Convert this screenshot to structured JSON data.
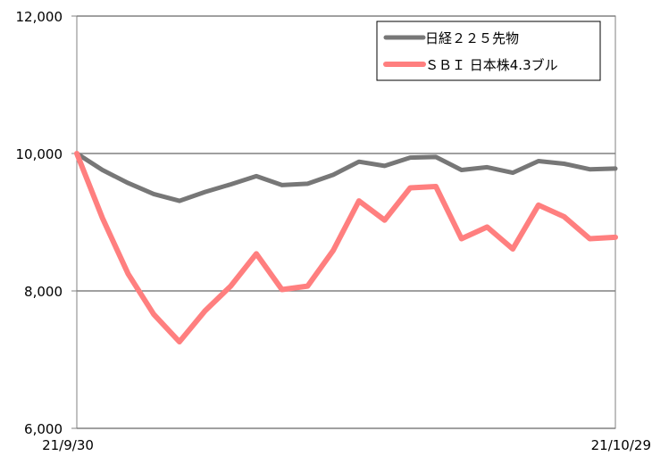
{
  "chart_data": {
    "type": "line",
    "title": "",
    "xlabel": "",
    "ylabel": "",
    "ylim": [
      6000,
      12000
    ],
    "yticks": [
      "6,000",
      "8,000",
      "10,000",
      "12,000"
    ],
    "ytick_values": [
      6000,
      8000,
      10000,
      12000
    ],
    "xtick_labels": [
      "21/9/30",
      "21/10/29"
    ],
    "grid": "horizontal",
    "legend_position": "top-right",
    "series": [
      {
        "name": "日経２２５先物",
        "color": "#777777",
        "values": [
          10000,
          9760,
          9570,
          9410,
          9310,
          9440,
          9550,
          9670,
          9540,
          9560,
          9690,
          9880,
          9820,
          9940,
          9950,
          9760,
          9800,
          9720,
          9890,
          9850,
          9770,
          9780
        ]
      },
      {
        "name": "ＳＢＩ 日本株4.3ブル",
        "color": "#ff7f7f",
        "values": [
          10000,
          9060,
          8250,
          7660,
          7260,
          7710,
          8070,
          8540,
          8020,
          8070,
          8590,
          9310,
          9030,
          9500,
          9520,
          8760,
          8930,
          8610,
          9250,
          9080,
          8760,
          8780
        ]
      }
    ]
  }
}
